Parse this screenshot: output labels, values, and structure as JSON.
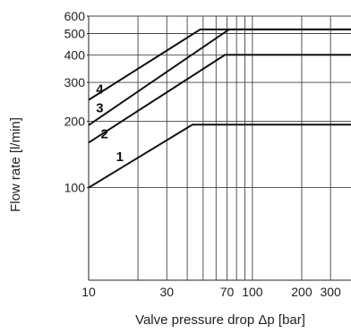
{
  "chart_data": {
    "type": "line",
    "xscale": "log",
    "yscale": "log",
    "xlabel": "Valve pressure drop Δp [bar]",
    "ylabel": "Flow rate [l/min]",
    "xlim": [
      10,
      400
    ],
    "ylim": [
      38,
      600
    ],
    "grid": true,
    "x_ticks": [
      {
        "value": 10,
        "label": "10"
      },
      {
        "value": 30,
        "label": "30"
      },
      {
        "value": 70,
        "label": "70"
      },
      {
        "value": 100,
        "label": "100"
      },
      {
        "value": 200,
        "label": "200"
      },
      {
        "value": 300,
        "label": "300"
      }
    ],
    "x_gridlines": [
      20,
      30,
      40,
      50,
      60,
      70,
      80,
      90,
      100,
      200,
      300
    ],
    "y_ticks": [
      {
        "value": 100,
        "label": "100"
      },
      {
        "value": 200,
        "label": "200"
      },
      {
        "value": 300,
        "label": "300"
      },
      {
        "value": 400,
        "label": "400"
      },
      {
        "value": 500,
        "label": "500"
      },
      {
        "value": 600,
        "label": "600"
      }
    ],
    "series": [
      {
        "name": "1",
        "x": [
          10,
          43,
          400
        ],
        "y": [
          100,
          193,
          193
        ],
        "label_at": [
          15.5,
          138
        ]
      },
      {
        "name": "2",
        "x": [
          10,
          68,
          400
        ],
        "y": [
          160,
          400,
          400
        ],
        "label_at": [
          12.5,
          175
        ]
      },
      {
        "name": "3",
        "x": [
          10,
          72,
          400
        ],
        "y": [
          192,
          522,
          522
        ],
        "label_at": [
          11.7,
          230
        ]
      },
      {
        "name": "4",
        "x": [
          10,
          48,
          400
        ],
        "y": [
          250,
          522,
          522
        ],
        "label_at": [
          11.7,
          280
        ]
      }
    ]
  }
}
